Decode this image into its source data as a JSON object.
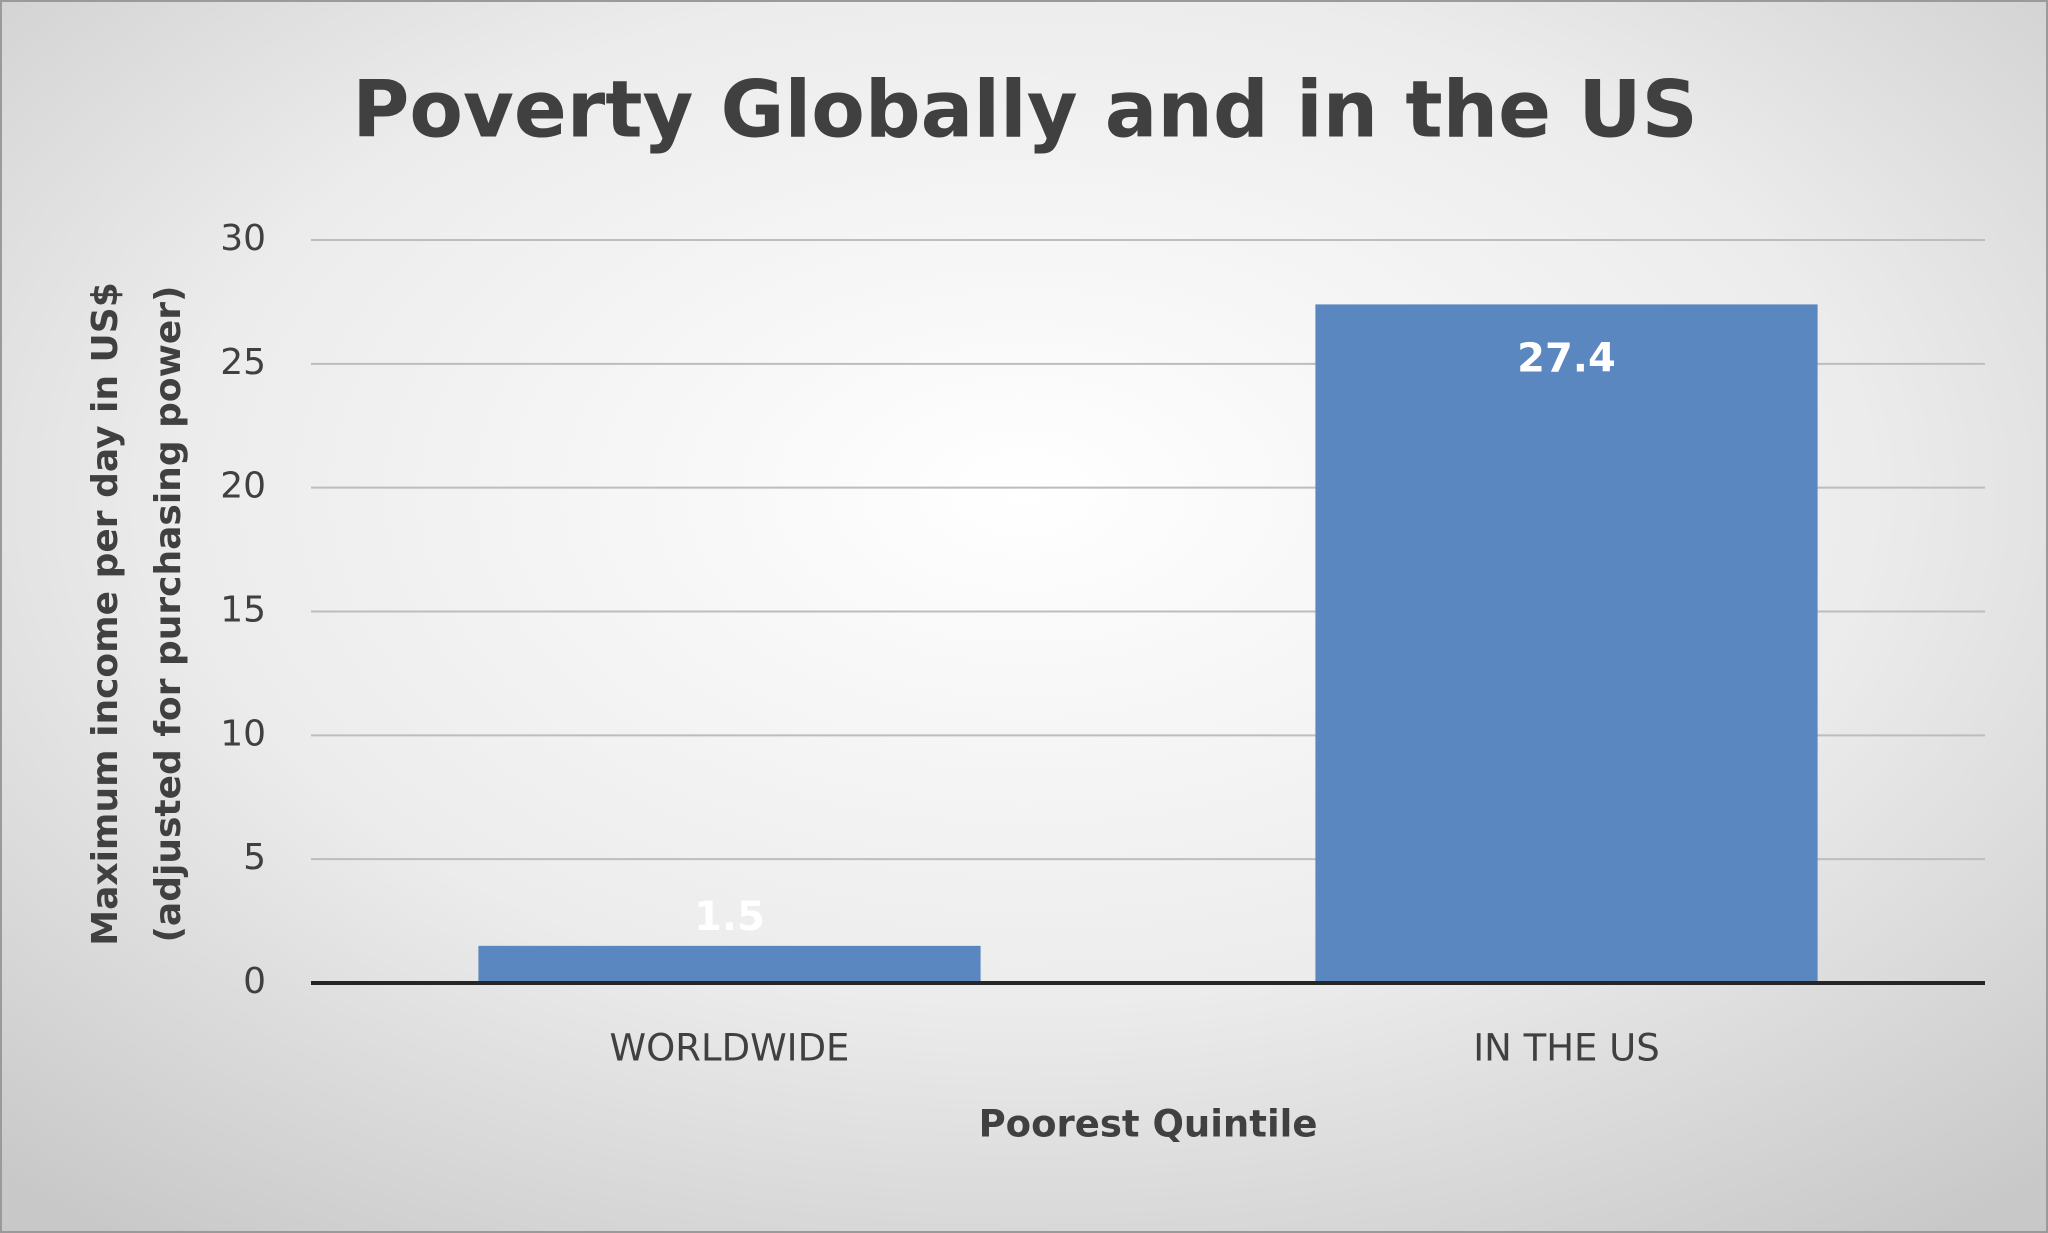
{
  "chart_data": {
    "type": "bar",
    "title": "Poverty Globally and in the US",
    "x_label": "Poorest Quintile",
    "y_label": [
      "Maximum income per day in US$",
      "(adjusted for purchasing power)"
    ],
    "categories": [
      "WORLDWIDE",
      "IN THE US"
    ],
    "values": [
      1.5,
      27.4
    ],
    "color": "#5b87c0",
    "ylim": [
      0,
      30
    ],
    "yticks": [
      0,
      5,
      10,
      15,
      20,
      25,
      30
    ],
    "grid": true
  }
}
